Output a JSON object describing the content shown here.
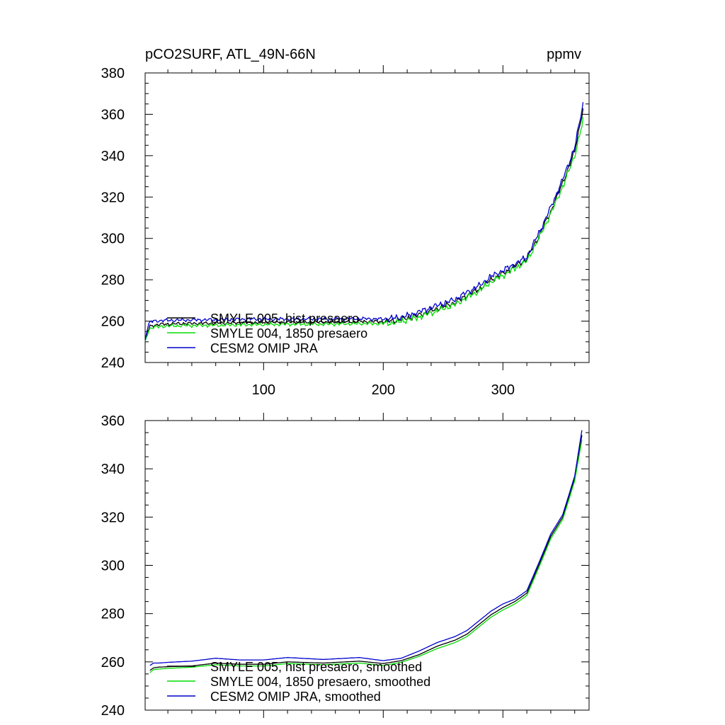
{
  "chart_data": [
    {
      "type": "line",
      "title_left": "pCO2SURF, ATL_49N-66N",
      "title_right": "ppmv",
      "xlim": [
        1,
        372
      ],
      "ylim": [
        240,
        380
      ],
      "y_ticks": [
        240,
        260,
        280,
        300,
        320,
        340,
        360,
        380
      ],
      "x_ticks": [
        100,
        200,
        300
      ],
      "x_tick_labels": [
        "100",
        "200",
        "300"
      ],
      "grid": false,
      "legend_position": "lower-left",
      "x_anchor": [
        1,
        3,
        5,
        8,
        15,
        30,
        60,
        90,
        120,
        150,
        180,
        200,
        210,
        220,
        230,
        240,
        250,
        260,
        270,
        280,
        290,
        300,
        310,
        320,
        330,
        340,
        350,
        360,
        367
      ],
      "series": [
        {
          "name": "SMYLE 005, hist presaero",
          "color": "#000000",
          "anchor_values": [
            250,
            255,
            257.5,
            258,
            258.5,
            258.8,
            259,
            259.3,
            259.5,
            259.5,
            259.8,
            259.8,
            260.3,
            261.5,
            263,
            265,
            267,
            269,
            272.5,
            275.5,
            280,
            283,
            286.5,
            290,
            301,
            313,
            327,
            342,
            363
          ]
        },
        {
          "name": "SMYLE 004, 1850 presaero",
          "color": "#00dd00",
          "anchor_values": [
            250,
            254,
            256.5,
            257,
            257.5,
            257.8,
            258,
            258.3,
            258.5,
            258.5,
            258.8,
            258.8,
            259.3,
            260.5,
            262,
            264,
            266,
            268,
            271.5,
            274.5,
            279,
            282,
            285.5,
            289,
            300,
            312,
            325,
            340,
            357
          ]
        },
        {
          "name": "CESM2 OMIP JRA",
          "color": "#0000cc",
          "anchor_values": [
            251,
            257,
            259.5,
            260,
            260.3,
            260.5,
            260.7,
            261,
            261,
            261,
            261.2,
            261,
            261.5,
            262.5,
            264.5,
            266.5,
            268.5,
            270.5,
            274,
            277,
            281.5,
            284.5,
            287.5,
            291,
            302.5,
            315,
            328.5,
            344,
            365
          ]
        }
      ]
    },
    {
      "type": "line",
      "title_left": "",
      "title_right": "",
      "xlim": [
        1,
        372
      ],
      "ylim": [
        240,
        360
      ],
      "y_ticks": [
        240,
        260,
        280,
        300,
        320,
        340,
        360
      ],
      "x_ticks": [
        100,
        200,
        300
      ],
      "x_tick_labels": [],
      "grid": false,
      "legend_position": "lower-left",
      "x_anchor": [
        5,
        8,
        12,
        20,
        40,
        60,
        80,
        100,
        120,
        150,
        180,
        200,
        215,
        230,
        245,
        260,
        270,
        280,
        290,
        300,
        310,
        320,
        330,
        340,
        350,
        360,
        366
      ],
      "series": [
        {
          "name": "SMYLE 005, hist presaero, smoothed",
          "color": "#000000",
          "anchor_values": [
            256.5,
            257.5,
            257.8,
            258,
            258.3,
            259.5,
            259,
            259,
            260,
            259.5,
            260.3,
            259.3,
            260.5,
            263,
            266.5,
            269,
            271.5,
            275.5,
            279.5,
            282.5,
            285,
            288.5,
            300,
            312,
            320,
            336,
            354
          ]
        },
        {
          "name": "SMYLE 004, 1850 presaero, smoothed",
          "color": "#00dd00",
          "anchor_values": [
            255.5,
            256.8,
            257,
            257.3,
            257.8,
            258.8,
            258.3,
            258.3,
            259.3,
            258.8,
            259.5,
            258.5,
            259.8,
            262.3,
            265.5,
            268,
            270.5,
            274.5,
            278.5,
            281.5,
            284,
            287.5,
            299,
            311,
            319,
            335,
            352
          ]
        },
        {
          "name": "CESM2 OMIP JRA, smoothed",
          "color": "#0000cc",
          "anchor_values": [
            258.5,
            259.5,
            259.5,
            259.8,
            260.3,
            261.5,
            260.8,
            260.8,
            261.8,
            261,
            261.8,
            260.5,
            261.5,
            264.5,
            268,
            270.5,
            273,
            277,
            281,
            284,
            286,
            289.5,
            301,
            313,
            321,
            337,
            356
          ]
        }
      ]
    }
  ]
}
